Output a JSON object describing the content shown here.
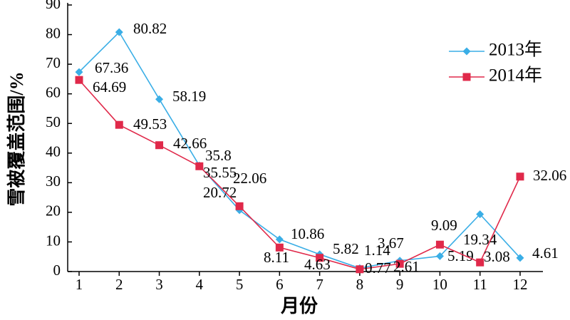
{
  "chart_data": {
    "type": "line",
    "xlabel": "月份",
    "ylabel": "雪被覆盖范围/%",
    "categories": [
      "1",
      "2",
      "3",
      "4",
      "5",
      "6",
      "7",
      "8",
      "9",
      "10",
      "11",
      "12"
    ],
    "series": [
      {
        "name": "2013年",
        "color": "#3aaee6",
        "marker": "diamond",
        "values": [
          67.36,
          80.82,
          58.19,
          35.8,
          20.72,
          10.86,
          5.82,
          1.14,
          3.67,
          5.19,
          19.34,
          4.61
        ]
      },
      {
        "name": "2014年",
        "color": "#e0294a",
        "marker": "square",
        "values": [
          64.69,
          49.53,
          42.66,
          35.55,
          22.06,
          8.11,
          4.63,
          0.77,
          2.61,
          9.09,
          3.08,
          32.06
        ]
      }
    ],
    "ylim": [
      0,
      90
    ],
    "yticks": [
      0,
      10,
      20,
      30,
      40,
      50,
      60,
      70,
      80,
      90
    ],
    "legend": "upper right"
  }
}
